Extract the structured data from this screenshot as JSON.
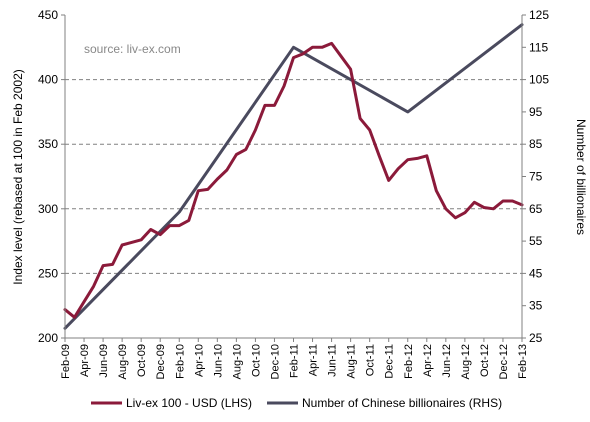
{
  "chart_data": {
    "type": "line",
    "title": "",
    "annotation": "source: liv-ex.com",
    "x_ticks": [
      "Feb-09",
      "Apr-09",
      "Jun-09",
      "Aug-09",
      "Oct-09",
      "Dec-09",
      "Feb-10",
      "Apr-10",
      "Jun-10",
      "Aug-10",
      "Oct-10",
      "Dec-10",
      "Feb-11",
      "Apr-11",
      "Jun-11",
      "Aug-11",
      "Oct-11",
      "Dec-11",
      "Feb-12",
      "Apr-12",
      "Jun-12",
      "Aug-12",
      "Oct-12",
      "Dec-12",
      "Feb-13"
    ],
    "y_left": {
      "label": "Index level (rebased at 100 in Feb 2002)",
      "range": [
        200,
        450
      ],
      "ticks": [
        200,
        250,
        300,
        350,
        400,
        450
      ]
    },
    "y_right": {
      "label": "Number of billionaires",
      "range": [
        25,
        125
      ],
      "ticks": [
        25,
        35,
        45,
        55,
        65,
        75,
        85,
        95,
        105,
        115,
        125
      ]
    },
    "grid": {
      "horizontal": true,
      "style": "dashed"
    },
    "legend_position": "bottom",
    "series": [
      {
        "name": "Liv-ex 100 - USD (LHS)",
        "axis": "left",
        "color": "#8b1a3a",
        "x": [
          "Feb-09",
          "Mar-09",
          "Apr-09",
          "May-09",
          "Jun-09",
          "Jul-09",
          "Aug-09",
          "Sep-09",
          "Oct-09",
          "Nov-09",
          "Dec-09",
          "Jan-10",
          "Feb-10",
          "Mar-10",
          "Apr-10",
          "May-10",
          "Jun-10",
          "Jul-10",
          "Aug-10",
          "Sep-10",
          "Oct-10",
          "Nov-10",
          "Dec-10",
          "Jan-11",
          "Feb-11",
          "Mar-11",
          "Apr-11",
          "May-11",
          "Jun-11",
          "Jul-11",
          "Aug-11",
          "Sep-11",
          "Oct-11",
          "Nov-11",
          "Dec-11",
          "Jan-12",
          "Feb-12",
          "Mar-12",
          "Apr-12",
          "May-12",
          "Jun-12",
          "Jul-12",
          "Aug-12",
          "Sep-12",
          "Oct-12",
          "Nov-12",
          "Dec-12",
          "Jan-13",
          "Feb-13"
        ],
        "values": [
          222,
          216,
          228,
          240,
          256,
          257,
          272,
          274,
          276,
          284,
          280,
          287,
          287,
          291,
          314,
          315,
          323,
          330,
          342,
          346,
          361,
          380,
          380,
          395,
          417,
          420,
          425,
          425,
          428,
          418,
          408,
          370,
          361,
          341,
          322,
          331,
          338,
          339,
          341,
          314,
          300,
          293,
          297,
          305,
          301,
          300,
          306,
          306,
          303
        ]
      },
      {
        "name": "Number of Chinese billionaires (RHS)",
        "axis": "right",
        "color": "#4a4a5e",
        "x": [
          "Feb-09",
          "Feb-10",
          "Feb-11",
          "Feb-12",
          "Feb-13"
        ],
        "values": [
          28,
          64,
          115,
          95,
          122
        ]
      }
    ]
  }
}
